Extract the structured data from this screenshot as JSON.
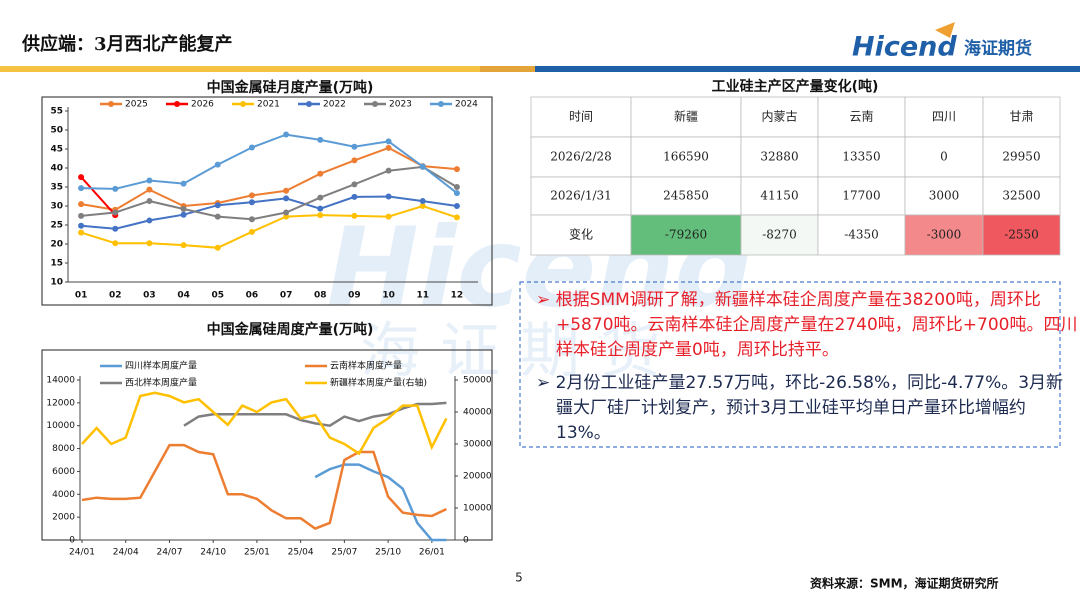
{
  "header": {
    "title": "供应端：3月西北产能复产",
    "logo": "Hicend",
    "logo_cn": "海证期货"
  },
  "chart_data": [
    {
      "type": "line",
      "title": "中国金属硅月度产量(万吨)",
      "categories": [
        "01",
        "02",
        "03",
        "04",
        "05",
        "06",
        "07",
        "08",
        "09",
        "10",
        "11",
        "12"
      ],
      "ylim": [
        10,
        55
      ],
      "yticks": [
        10,
        15,
        20,
        25,
        30,
        35,
        40,
        45,
        50,
        55
      ],
      "markers": true,
      "legend": "top",
      "series": [
        {
          "name": "2025",
          "color": "#ed7d31",
          "values": [
            30.5,
            29,
            34.3,
            30,
            30.8,
            32.8,
            34,
            38.5,
            42,
            45.3,
            40.5,
            39.7
          ]
        },
        {
          "name": "2026",
          "color": "#ff0000",
          "values": [
            37.6,
            27.6,
            null,
            null,
            null,
            null,
            null,
            null,
            null,
            null,
            null,
            null
          ]
        },
        {
          "name": "2021",
          "color": "#ffc000",
          "values": [
            23,
            20.2,
            20.2,
            19.7,
            19,
            23.2,
            27.2,
            27.6,
            27.4,
            27.2,
            30,
            27
          ]
        },
        {
          "name": "2022",
          "color": "#4472c4",
          "values": [
            24.8,
            24,
            26.2,
            27.7,
            30.2,
            31,
            32,
            29.3,
            32.4,
            32.5,
            31.3,
            30
          ]
        },
        {
          "name": "2023",
          "color": "#7f7f7f",
          "values": [
            27.4,
            28.3,
            31.3,
            29.2,
            27.2,
            26.5,
            28.3,
            32.2,
            35.7,
            39.3,
            40.3,
            35
          ]
        },
        {
          "name": "2024",
          "color": "#5b9bd5",
          "values": [
            34.7,
            34.5,
            36.7,
            35.9,
            40.9,
            45.4,
            48.8,
            47.4,
            45.6,
            47,
            40.4,
            33.4
          ]
        }
      ]
    },
    {
      "type": "line",
      "title": "中国金属硅周度产量(万吨)",
      "x": [
        "24/01",
        "24/02",
        "24/03",
        "24/04",
        "24/05",
        "24/06",
        "24/07",
        "24/08",
        "24/09",
        "24/10",
        "24/11",
        "24/12",
        "25/01",
        "25/02",
        "25/03",
        "25/04",
        "25/05",
        "25/06",
        "25/07",
        "25/08",
        "25/09",
        "25/10",
        "25/11",
        "25/12",
        "26/01",
        "26/02"
      ],
      "xticks": [
        "24/01",
        "24/04",
        "24/07",
        "24/10",
        "25/01",
        "25/04",
        "25/07",
        "25/10",
        "26/01"
      ],
      "ylim": [
        0,
        14000
      ],
      "yticks": [
        0,
        2000,
        4000,
        6000,
        8000,
        10000,
        12000,
        14000
      ],
      "y2lim": [
        0,
        50000
      ],
      "y2ticks": [
        0,
        10000,
        20000,
        30000,
        40000,
        50000
      ],
      "markers": false,
      "legend": "top",
      "series": [
        {
          "name": "四川样本周度产量",
          "color": "#5b9bd5",
          "values": [
            null,
            null,
            null,
            null,
            null,
            null,
            null,
            null,
            null,
            null,
            null,
            null,
            null,
            null,
            null,
            null,
            5500,
            6200,
            6600,
            6600,
            6000,
            5500,
            4500,
            1500,
            0,
            0
          ]
        },
        {
          "name": "云南样本周度产量",
          "color": "#ed7d31",
          "values": [
            3500,
            3700,
            3600,
            3600,
            3700,
            6000,
            8300,
            8300,
            7700,
            7500,
            4000,
            4000,
            3600,
            2600,
            1900,
            1900,
            1000,
            1500,
            7000,
            7700,
            7700,
            3800,
            2400,
            2200,
            2100,
            2700
          ]
        },
        {
          "name": "西北样本周度产量",
          "color": "#7f7f7f",
          "values": [
            null,
            null,
            null,
            null,
            null,
            null,
            null,
            10000,
            10800,
            11000,
            11000,
            11000,
            11000,
            11000,
            11000,
            10500,
            10200,
            10000,
            10800,
            10400,
            10800,
            11000,
            11500,
            11900,
            11900,
            12000
          ]
        },
        {
          "name": "新疆样本周度产量(右轴)",
          "color": "#ffc000",
          "axis": "y2",
          "values": [
            30000,
            35000,
            30000,
            32000,
            45000,
            46000,
            45000,
            43000,
            44000,
            40000,
            36000,
            42000,
            40000,
            43000,
            44000,
            38000,
            39000,
            32000,
            30000,
            27000,
            35000,
            38000,
            42000,
            42000,
            29000,
            38000
          ]
        }
      ]
    }
  ],
  "table": {
    "title": "工业硅主产区产量变化(吨)",
    "header": [
      "时间",
      "新疆",
      "内蒙古",
      "云南",
      "四川",
      "甘肃"
    ],
    "rows": [
      [
        "2026/2/28",
        166590,
        32880,
        13350,
        0,
        29950
      ],
      [
        "2026/1/31",
        245850,
        41150,
        17700,
        3000,
        32500
      ],
      [
        "变化",
        -79260,
        -8270,
        -4350,
        -3000,
        -2550
      ]
    ],
    "change_colors": [
      "#63be7b",
      "#f3f8f4",
      "#ffffff",
      "#f4898b",
      "#f0585f"
    ]
  },
  "bullets": [
    {
      "text": "根据SMM调研了解，新疆样本硅企周度产量在38200吨，周环比+5870吨。云南样本硅企周度产量在2740吨，周环比+700吨。四川样本硅企周度产量0吨，周环比持平。",
      "color": "#e8202a"
    },
    {
      "text": "2月份工业硅产量27.57万吨，环比-26.58%，同比-4.77%。3月新疆大厂硅厂计划复产，预计3月工业硅平均单日产量环比增幅约13%。",
      "color": "#1c2a50"
    }
  ],
  "footer": {
    "page": "5",
    "source": "资料来源：SMM，海证期货研究所"
  }
}
